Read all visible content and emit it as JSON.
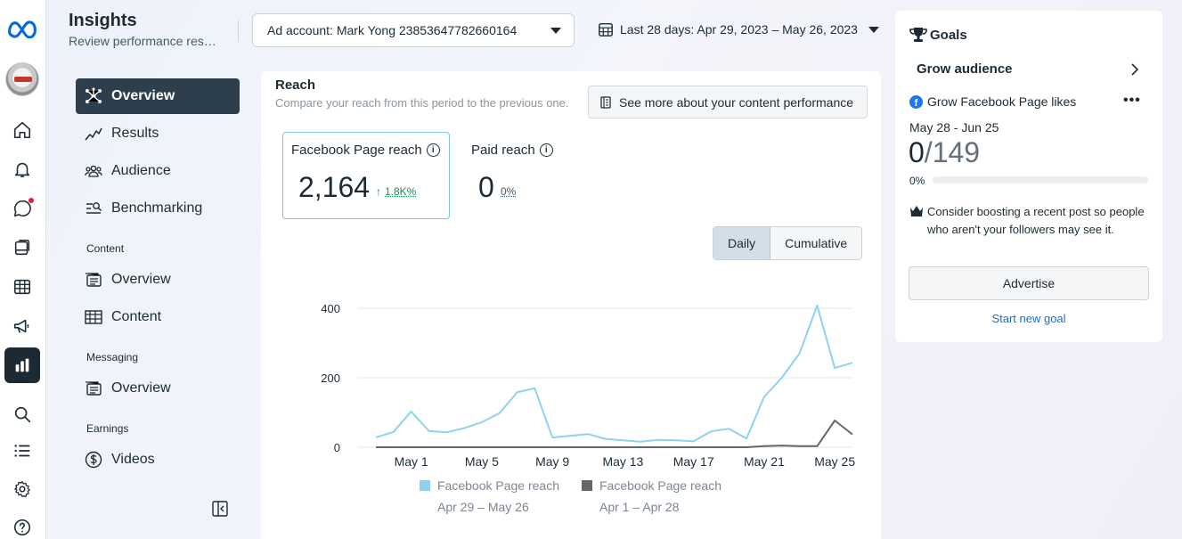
{
  "header": {
    "title": "Insights",
    "subtitle": "Review performance results",
    "ad_account": "Ad account: Mark Yong 23853647782660164",
    "date_range": "Last 28 days: Apr 29, 2023 – May 26, 2023"
  },
  "rail": {
    "icons": [
      "meta-logo-icon",
      "home-icon",
      "bell-icon",
      "chat-icon",
      "pages-icon",
      "table-icon",
      "megaphone-icon",
      "insights-chart-icon",
      "search-icon",
      "list-icon",
      "gear-icon",
      "help-icon"
    ],
    "active": "insights-chart-icon"
  },
  "nav": {
    "items": [
      {
        "label": "Overview",
        "icon": "network-icon",
        "active": true
      },
      {
        "label": "Results",
        "icon": "trend-icon"
      },
      {
        "label": "Audience",
        "icon": "people-icon"
      },
      {
        "label": "Benchmarking",
        "icon": "benchmark-icon"
      }
    ],
    "content_heading": "Content",
    "content_items": [
      {
        "label": "Overview",
        "icon": "content-overview-icon"
      },
      {
        "label": "Content",
        "icon": "content-table-icon"
      }
    ],
    "messaging_heading": "Messaging",
    "messaging_items": [
      {
        "label": "Overview",
        "icon": "messaging-overview-icon"
      }
    ],
    "earnings_heading": "Earnings",
    "earnings_items": [
      {
        "label": "Videos",
        "icon": "dollar-icon"
      }
    ]
  },
  "reach": {
    "title": "Reach",
    "description": "Compare your reach from this period to the previous one.",
    "see_more": "See more about your content performance",
    "page_reach_label": "Facebook Page reach",
    "page_reach_value": "2,164",
    "page_reach_change": "1.8K%",
    "paid_reach_label": "Paid reach",
    "paid_reach_value": "0",
    "paid_reach_change": "0%",
    "toggle_daily": "Daily",
    "toggle_cumulative": "Cumulative",
    "legend": [
      {
        "name": "Facebook Page reach",
        "period": "Apr 29 – May 26",
        "color": "#8dd3f0"
      },
      {
        "name": "Facebook Page reach",
        "period": "Apr 1 – Apr 28",
        "color": "#63676b"
      }
    ]
  },
  "chart_data": {
    "type": "line",
    "x": [
      "Apr 29",
      "Apr 30",
      "May 1",
      "May 2",
      "May 3",
      "May 4",
      "May 5",
      "May 6",
      "May 7",
      "May 8",
      "May 9",
      "May 10",
      "May 11",
      "May 12",
      "May 13",
      "May 14",
      "May 15",
      "May 16",
      "May 17",
      "May 18",
      "May 19",
      "May 20",
      "May 21",
      "May 22",
      "May 23",
      "May 24",
      "May 25",
      "May 26"
    ],
    "x_ticks": [
      "May 1",
      "May 5",
      "May 9",
      "May 13",
      "May 17",
      "May 21",
      "May 25"
    ],
    "y_ticks": [
      0,
      200,
      400
    ],
    "ylim": [
      0,
      400
    ],
    "grid": true,
    "series": [
      {
        "name": "Facebook Page reach",
        "color": "#8dd3f0",
        "values": [
          28,
          44,
          103,
          47,
          43,
          55,
          72,
          98,
          158,
          170,
          28,
          33,
          38,
          24,
          20,
          16,
          21,
          20,
          17,
          46,
          53,
          25,
          145,
          200,
          270,
          408,
          228,
          243
        ]
      },
      {
        "name": "Facebook Page reach",
        "color": "#63676b",
        "values": [
          0,
          0,
          0,
          0,
          0,
          0,
          0,
          0,
          0,
          0,
          0,
          0,
          0,
          0,
          0,
          0,
          0,
          0,
          0,
          0,
          0,
          0,
          3,
          5,
          3,
          3,
          77,
          37
        ]
      }
    ]
  },
  "goals": {
    "title": "Goals",
    "section": "Grow audience",
    "goal_name": "Grow Facebook Page likes",
    "dates": "May 28 - Jun 25",
    "current": "0",
    "total": "/149",
    "percent_label": "0%",
    "progress": 0,
    "tip": "Consider boosting a recent post so people who aren't your followers may see it.",
    "advertise": "Advertise",
    "new_goal": "Start new goal"
  }
}
